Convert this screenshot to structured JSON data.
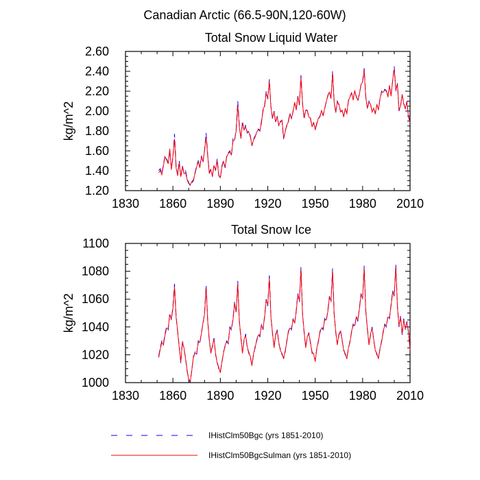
{
  "figure": {
    "suptitle": "Canadian Arctic (66.5-90N,120-60W)"
  },
  "colors": {
    "series_1": "#0000ff",
    "series_2": "#ff0000",
    "axis": "#000000"
  },
  "legend": {
    "items": [
      {
        "label": "IHistClm50Bgc (yrs 1851-2010)",
        "style": "dashed",
        "color": "#0000ff"
      },
      {
        "label": "IHistClm50BgcSulman (yrs 1851-2010)",
        "style": "solid",
        "color": "#ff0000"
      }
    ]
  },
  "chart_data": [
    {
      "type": "line",
      "title": "Total Snow Liquid Water",
      "xlabel": "",
      "ylabel": "kg/m^2",
      "xlim": [
        1830,
        2010
      ],
      "ylim": [
        1.2,
        2.6
      ],
      "xticks": [
        1830,
        1860,
        1890,
        1920,
        1950,
        1980,
        2010
      ],
      "xtick_labels": [
        "1830",
        "1860",
        "1890",
        "1920",
        "1950",
        "1980",
        "2010"
      ],
      "yticks": [
        1.2,
        1.4,
        1.6,
        1.8,
        2.0,
        2.2,
        2.4,
        2.6
      ],
      "ytick_labels": [
        "1.20",
        "1.40",
        "1.60",
        "1.80",
        "2.00",
        "2.20",
        "2.40",
        "2.60"
      ],
      "grid": false,
      "x": [
        1851,
        1852,
        1853,
        1854,
        1855,
        1856,
        1857,
        1858,
        1859,
        1860,
        1861,
        1862,
        1863,
        1864,
        1865,
        1866,
        1867,
        1868,
        1869,
        1870,
        1871,
        1872,
        1873,
        1874,
        1875,
        1876,
        1877,
        1878,
        1879,
        1880,
        1881,
        1882,
        1883,
        1884,
        1885,
        1886,
        1887,
        1888,
        1889,
        1890,
        1891,
        1892,
        1893,
        1894,
        1895,
        1896,
        1897,
        1898,
        1899,
        1900,
        1901,
        1902,
        1903,
        1904,
        1905,
        1906,
        1907,
        1908,
        1909,
        1910,
        1911,
        1912,
        1913,
        1914,
        1915,
        1916,
        1917,
        1918,
        1919,
        1920,
        1921,
        1922,
        1923,
        1924,
        1925,
        1926,
        1927,
        1928,
        1929,
        1930,
        1931,
        1932,
        1933,
        1934,
        1935,
        1936,
        1937,
        1938,
        1939,
        1940,
        1941,
        1942,
        1943,
        1944,
        1945,
        1946,
        1947,
        1948,
        1949,
        1950,
        1951,
        1952,
        1953,
        1954,
        1955,
        1956,
        1957,
        1958,
        1959,
        1960,
        1961,
        1962,
        1963,
        1964,
        1965,
        1966,
        1967,
        1968,
        1969,
        1970,
        1971,
        1972,
        1973,
        1974,
        1975,
        1976,
        1977,
        1978,
        1979,
        1980,
        1981,
        1982,
        1983,
        1984,
        1985,
        1986,
        1987,
        1988,
        1989,
        1990,
        1991,
        1992,
        1993,
        1994,
        1995,
        1996,
        1997,
        1998,
        1999,
        2000,
        2001,
        2002,
        2003,
        2004,
        2005,
        2006,
        2007,
        2008,
        2009,
        2010
      ],
      "series": [
        {
          "name": "IHistClm50Bgc (yrs 1851-2010)",
          "values": [
            1.4,
            1.42,
            1.37,
            1.46,
            1.55,
            1.52,
            1.48,
            1.6,
            1.42,
            1.53,
            1.77,
            1.45,
            1.36,
            1.5,
            1.33,
            1.45,
            1.38,
            1.4,
            1.32,
            1.28,
            1.25,
            1.28,
            1.3,
            1.38,
            1.45,
            1.5,
            1.44,
            1.55,
            1.48,
            1.61,
            1.78,
            1.56,
            1.38,
            1.42,
            1.34,
            1.46,
            1.4,
            1.52,
            1.36,
            1.32,
            1.45,
            1.5,
            1.43,
            1.55,
            1.58,
            1.6,
            1.55,
            1.72,
            1.7,
            1.82,
            2.1,
            1.86,
            1.72,
            1.9,
            1.8,
            1.86,
            1.78,
            1.8,
            1.75,
            1.65,
            1.72,
            1.75,
            1.78,
            1.82,
            1.8,
            1.9,
            2.0,
            2.06,
            2.2,
            2.12,
            2.32,
            2.05,
            1.92,
            2.0,
            1.88,
            1.95,
            1.85,
            1.9,
            1.9,
            1.72,
            1.8,
            1.85,
            1.9,
            1.98,
            1.92,
            2.0,
            2.08,
            2.02,
            2.15,
            2.06,
            2.36,
            2.08,
            1.92,
            2.02,
            2.0,
            1.95,
            1.92,
            1.85,
            1.88,
            1.82,
            1.88,
            1.92,
            1.95,
            2.0,
            1.96,
            2.02,
            2.1,
            2.15,
            2.2,
            2.12,
            2.4,
            2.1,
            1.98,
            2.1,
            2.06,
            2.0,
            2.0,
            1.95,
            2.02,
            1.98,
            2.1,
            2.15,
            2.18,
            2.12,
            2.2,
            2.15,
            2.1,
            2.18,
            2.26,
            2.3,
            2.43,
            2.15,
            2.02,
            2.1,
            2.06,
            2.0,
            2.02,
            1.98,
            2.06,
            2.02,
            2.12,
            2.2,
            2.18,
            2.22,
            2.2,
            2.15,
            2.25,
            2.16,
            2.3,
            2.45,
            2.2,
            2.28,
            2.0,
            2.06,
            2.16,
            2.08,
            2.02,
            2.1,
            1.95,
            1.9
          ]
        },
        {
          "name": "IHistClm50BgcSulman (yrs 1851-2010)",
          "values": [
            1.38,
            1.4,
            1.36,
            1.45,
            1.54,
            1.51,
            1.47,
            1.62,
            1.41,
            1.55,
            1.72,
            1.43,
            1.35,
            1.48,
            1.34,
            1.44,
            1.37,
            1.38,
            1.31,
            1.27,
            1.26,
            1.29,
            1.31,
            1.37,
            1.44,
            1.49,
            1.43,
            1.54,
            1.49,
            1.6,
            1.74,
            1.55,
            1.37,
            1.41,
            1.35,
            1.45,
            1.41,
            1.5,
            1.35,
            1.33,
            1.44,
            1.49,
            1.44,
            1.54,
            1.57,
            1.59,
            1.56,
            1.7,
            1.71,
            1.8,
            2.06,
            1.84,
            1.73,
            1.88,
            1.81,
            1.84,
            1.79,
            1.79,
            1.74,
            1.66,
            1.71,
            1.74,
            1.79,
            1.81,
            1.81,
            1.88,
            2.02,
            2.05,
            2.18,
            2.13,
            2.3,
            2.04,
            1.93,
            1.99,
            1.89,
            1.94,
            1.86,
            1.89,
            1.91,
            1.73,
            1.79,
            1.86,
            1.89,
            1.97,
            1.93,
            1.99,
            2.09,
            2.01,
            2.14,
            2.07,
            2.34,
            2.07,
            1.93,
            2.01,
            2.01,
            1.94,
            1.93,
            1.84,
            1.89,
            1.81,
            1.87,
            1.93,
            1.94,
            2.01,
            1.95,
            2.03,
            2.09,
            2.16,
            2.19,
            2.13,
            2.38,
            2.09,
            1.99,
            2.09,
            2.07,
            1.99,
            2.01,
            1.94,
            2.03,
            1.97,
            2.11,
            2.14,
            2.19,
            2.11,
            2.21,
            2.14,
            2.11,
            2.17,
            2.27,
            2.29,
            2.41,
            2.14,
            2.03,
            2.09,
            2.07,
            1.99,
            2.03,
            1.97,
            2.07,
            2.01,
            2.13,
            2.19,
            2.19,
            2.21,
            2.21,
            2.14,
            2.26,
            2.15,
            2.31,
            2.42,
            2.21,
            2.27,
            2.01,
            2.05,
            2.17,
            2.07,
            2.03,
            2.09,
            1.94,
            1.88
          ]
        }
      ]
    },
    {
      "type": "line",
      "title": "Total Snow Ice",
      "xlabel": "",
      "ylabel": "kg/m^2",
      "xlim": [
        1830,
        2010
      ],
      "ylim": [
        1000,
        1100
      ],
      "xticks": [
        1830,
        1860,
        1890,
        1920,
        1950,
        1980,
        2010
      ],
      "xtick_labels": [
        "1830",
        "1860",
        "1890",
        "1920",
        "1950",
        "1980",
        "2010"
      ],
      "yticks": [
        1000,
        1020,
        1040,
        1060,
        1080,
        1100
      ],
      "ytick_labels": [
        "1000",
        "1020",
        "1040",
        "1060",
        "1080",
        "1100"
      ],
      "grid": false,
      "x": [
        1851,
        1852,
        1853,
        1854,
        1855,
        1856,
        1857,
        1858,
        1859,
        1860,
        1861,
        1862,
        1863,
        1864,
        1865,
        1866,
        1867,
        1868,
        1869,
        1870,
        1871,
        1872,
        1873,
        1874,
        1875,
        1876,
        1877,
        1878,
        1879,
        1880,
        1881,
        1882,
        1883,
        1884,
        1885,
        1886,
        1887,
        1888,
        1889,
        1890,
        1891,
        1892,
        1893,
        1894,
        1895,
        1896,
        1897,
        1898,
        1899,
        1900,
        1901,
        1902,
        1903,
        1904,
        1905,
        1906,
        1907,
        1908,
        1909,
        1910,
        1911,
        1912,
        1913,
        1914,
        1915,
        1916,
        1917,
        1918,
        1919,
        1920,
        1921,
        1922,
        1923,
        1924,
        1925,
        1926,
        1927,
        1928,
        1929,
        1930,
        1931,
        1932,
        1933,
        1934,
        1935,
        1936,
        1937,
        1938,
        1939,
        1940,
        1941,
        1942,
        1943,
        1944,
        1945,
        1946,
        1947,
        1948,
        1949,
        1950,
        1951,
        1952,
        1953,
        1954,
        1955,
        1956,
        1957,
        1958,
        1959,
        1960,
        1961,
        1962,
        1963,
        1964,
        1965,
        1966,
        1967,
        1968,
        1969,
        1970,
        1971,
        1972,
        1973,
        1974,
        1975,
        1976,
        1977,
        1978,
        1979,
        1980,
        1981,
        1982,
        1983,
        1984,
        1985,
        1986,
        1987,
        1988,
        1989,
        1990,
        1991,
        1992,
        1993,
        1994,
        1995,
        1996,
        1997,
        1998,
        1999,
        2000,
        2001,
        2002,
        2003,
        2004,
        2005,
        2006,
        2007,
        2008,
        2009,
        2010
      ],
      "series": [
        {
          "name": "IHistClm50Bgc (yrs 1851-2010)",
          "values": [
            1019,
            1025,
            1030,
            1028,
            1035,
            1040,
            1038,
            1050,
            1045,
            1055,
            1071,
            1048,
            1036,
            1026,
            1014,
            1030,
            1024,
            1018,
            1008,
            1003,
            1000,
            1010,
            1018,
            1022,
            1020,
            1030,
            1028,
            1036,
            1042,
            1050,
            1070,
            1045,
            1030,
            1022,
            1026,
            1032,
            1020,
            1015,
            1010,
            1008,
            1014,
            1022,
            1026,
            1030,
            1028,
            1040,
            1038,
            1046,
            1058,
            1050,
            1073,
            1045,
            1032,
            1022,
            1030,
            1035,
            1025,
            1022,
            1018,
            1013,
            1020,
            1026,
            1030,
            1035,
            1033,
            1042,
            1038,
            1048,
            1060,
            1055,
            1077,
            1048,
            1035,
            1026,
            1034,
            1038,
            1028,
            1024,
            1020,
            1018,
            1022,
            1030,
            1036,
            1040,
            1038,
            1046,
            1042,
            1052,
            1064,
            1058,
            1083,
            1050,
            1036,
            1026,
            1032,
            1036,
            1028,
            1022,
            1020,
            1016,
            1024,
            1030,
            1036,
            1040,
            1038,
            1046,
            1044,
            1052,
            1062,
            1058,
            1082,
            1050,
            1036,
            1028,
            1034,
            1038,
            1030,
            1024,
            1020,
            1018,
            1024,
            1030,
            1036,
            1042,
            1040,
            1048,
            1044,
            1054,
            1064,
            1060,
            1084,
            1052,
            1038,
            1028,
            1034,
            1040,
            1030,
            1024,
            1020,
            1018,
            1024,
            1030,
            1036,
            1042,
            1040,
            1048,
            1046,
            1056,
            1066,
            1062,
            1085,
            1055,
            1040,
            1048,
            1034,
            1046,
            1038,
            1044,
            1036,
            1024
          ]
        },
        {
          "name": "IHistClm50BgcSulman (yrs 1851-2010)",
          "values": [
            1018,
            1024,
            1029,
            1027,
            1034,
            1039,
            1039,
            1049,
            1046,
            1053,
            1069,
            1047,
            1037,
            1025,
            1015,
            1029,
            1025,
            1017,
            1009,
            1002,
            1001,
            1009,
            1019,
            1021,
            1021,
            1029,
            1029,
            1035,
            1043,
            1049,
            1068,
            1044,
            1031,
            1021,
            1027,
            1031,
            1021,
            1014,
            1011,
            1007,
            1015,
            1021,
            1027,
            1029,
            1029,
            1039,
            1039,
            1045,
            1057,
            1051,
            1071,
            1044,
            1033,
            1021,
            1031,
            1034,
            1026,
            1021,
            1019,
            1012,
            1021,
            1025,
            1031,
            1034,
            1034,
            1041,
            1039,
            1047,
            1059,
            1056,
            1075,
            1047,
            1036,
            1025,
            1035,
            1037,
            1029,
            1023,
            1021,
            1017,
            1023,
            1029,
            1037,
            1039,
            1039,
            1045,
            1043,
            1051,
            1063,
            1059,
            1081,
            1049,
            1037,
            1025,
            1033,
            1035,
            1029,
            1021,
            1021,
            1015,
            1025,
            1029,
            1037,
            1039,
            1039,
            1045,
            1045,
            1051,
            1061,
            1059,
            1080,
            1049,
            1037,
            1027,
            1035,
            1037,
            1031,
            1023,
            1021,
            1017,
            1025,
            1029,
            1037,
            1041,
            1041,
            1047,
            1045,
            1053,
            1063,
            1061,
            1082,
            1051,
            1039,
            1027,
            1035,
            1039,
            1031,
            1023,
            1021,
            1017,
            1025,
            1029,
            1037,
            1041,
            1041,
            1047,
            1047,
            1055,
            1065,
            1063,
            1083,
            1054,
            1041,
            1047,
            1035,
            1045,
            1039,
            1043,
            1037,
            1023
          ]
        }
      ]
    }
  ]
}
